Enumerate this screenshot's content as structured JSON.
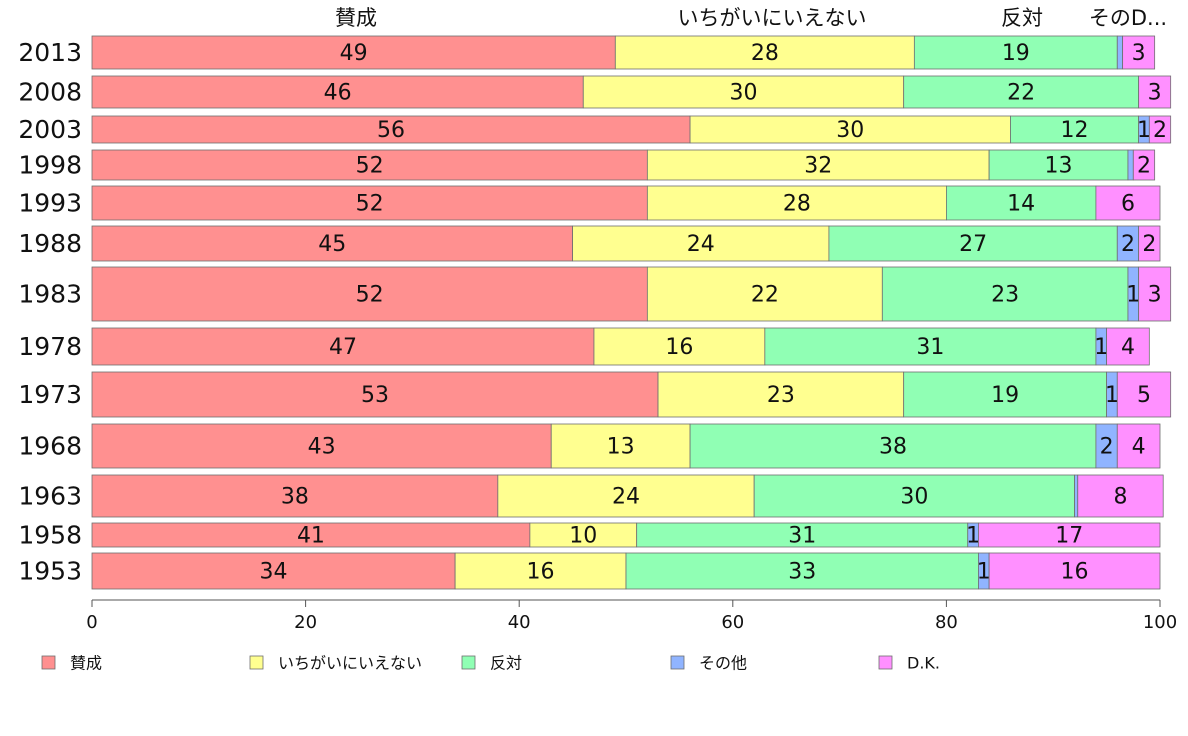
{
  "chart_data": {
    "type": "bar",
    "orientation": "horizontal",
    "stacked": true,
    "title": "",
    "xlabel": "",
    "ylabel": "",
    "xlim": [
      0,
      100
    ],
    "x_ticks": [
      0,
      20,
      40,
      60,
      80,
      100
    ],
    "grid": false,
    "legend_position": "bottom",
    "column_headers": [
      "賛成",
      "いちがいにいえない",
      "反対",
      "そのD..."
    ],
    "categories": [
      "2013",
      "2008",
      "2003",
      "1998",
      "1993",
      "1988",
      "1983",
      "1978",
      "1973",
      "1968",
      "1963",
      "1958",
      "1953"
    ],
    "series": [
      {
        "name": "賛成",
        "color": "#ff9090",
        "values": [
          49,
          46,
          56,
          52,
          52,
          45,
          52,
          47,
          53,
          43,
          38,
          41,
          34
        ]
      },
      {
        "name": "いちがいにいえない",
        "color": "#ffff90",
        "values": [
          28,
          30,
          30,
          32,
          28,
          24,
          22,
          16,
          23,
          13,
          24,
          10,
          16
        ]
      },
      {
        "name": "反対",
        "color": "#90ffb4",
        "values": [
          19,
          22,
          12,
          13,
          14,
          27,
          23,
          31,
          19,
          38,
          30,
          31,
          33
        ]
      },
      {
        "name": "その他",
        "color": "#90b4ff",
        "values": [
          0.5,
          0,
          1,
          0.5,
          0,
          2,
          1,
          1,
          1,
          2,
          0.3,
          1,
          1
        ]
      },
      {
        "name": "D.K.",
        "color": "#ff90ff",
        "values": [
          3,
          3,
          2,
          2,
          6,
          2,
          3,
          4,
          5,
          4,
          8,
          17,
          16
        ]
      }
    ],
    "labels": [
      [
        "49",
        "28",
        "19",
        "",
        "3"
      ],
      [
        "46",
        "30",
        "22",
        "",
        "3"
      ],
      [
        "56",
        "30",
        "12",
        "1",
        "2"
      ],
      [
        "52",
        "32",
        "13",
        "",
        "2"
      ],
      [
        "52",
        "28",
        "14",
        "",
        "6"
      ],
      [
        "45",
        "24",
        "27",
        "2",
        "2"
      ],
      [
        "52",
        "22",
        "23",
        "1",
        "3"
      ],
      [
        "47",
        "16",
        "31",
        "1",
        "4"
      ],
      [
        "53",
        "23",
        "19",
        "1",
        "5"
      ],
      [
        "43",
        "13",
        "38",
        "2",
        "4"
      ],
      [
        "38",
        "24",
        "30",
        "",
        "8"
      ],
      [
        "41",
        "10",
        "31",
        "1",
        "17"
      ],
      [
        "34",
        "16",
        "33",
        "1",
        "16"
      ]
    ]
  }
}
